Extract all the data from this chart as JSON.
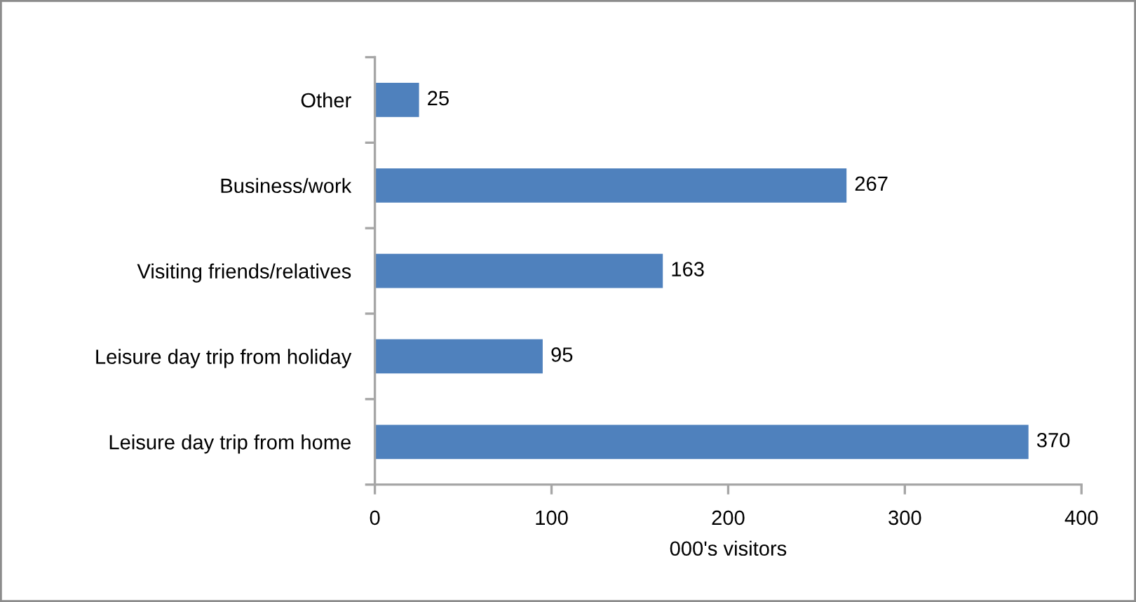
{
  "chart_data": {
    "type": "bar",
    "orientation": "horizontal",
    "categories": [
      "Other",
      "Business/work",
      "Visiting friends/relatives",
      "Leisure day trip from holiday",
      "Leisure day trip from home"
    ],
    "values": [
      25,
      267,
      163,
      95,
      370
    ],
    "color": "#4f81bd",
    "xlabel": "000's visitors",
    "xlim": [
      0,
      400
    ],
    "xticks": [
      0,
      100,
      200,
      300,
      400
    ],
    "data_labels": true
  }
}
